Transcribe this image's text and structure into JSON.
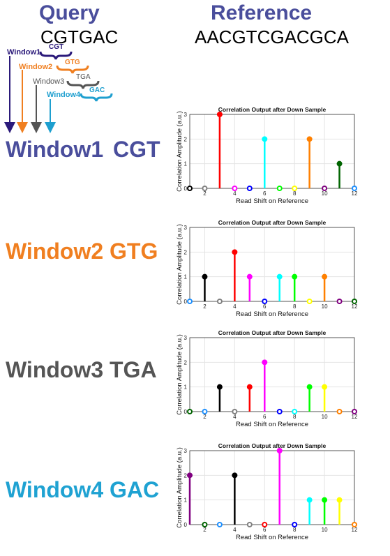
{
  "header": {
    "query_title": "Query",
    "query_seq": "CGTGAC",
    "reference_title": "Reference",
    "reference_seq": "AACGTCGACGCA"
  },
  "diagram": {
    "windows": [
      {
        "label": "Window1",
        "kmer": "CGT",
        "color": "#2b1a7a"
      },
      {
        "label": "Window2",
        "kmer": "GTG",
        "color": "#f07f20"
      },
      {
        "label": "Window3",
        "kmer": "TGA",
        "color": "#555555"
      },
      {
        "label": "Window4",
        "kmer": "GAC",
        "color": "#1e9fcf"
      }
    ]
  },
  "rows": [
    {
      "label": "Window1",
      "kmer": "CGT",
      "color": "#4a4e9c"
    },
    {
      "label": "Window2",
      "kmer": "GTG",
      "color": "#f07f20"
    },
    {
      "label": "Window3",
      "kmer": "TGA",
      "color": "#555555"
    },
    {
      "label": "Window4",
      "kmer": "GAC",
      "color": "#1fa2d2"
    }
  ],
  "chart_data": [
    {
      "type": "scatter",
      "title": "Correlation Output after Down Sample",
      "xlabel": "Read Shift on Reference",
      "ylabel": "Correlation Amplitude (a.u.)",
      "xlim": [
        1,
        12
      ],
      "ylim": [
        0,
        3
      ],
      "xticks": [
        2,
        4,
        6,
        8,
        10,
        12
      ],
      "yticks": [
        0,
        1,
        2,
        3
      ],
      "x": [
        1,
        2,
        3,
        4,
        5,
        6,
        7,
        8,
        9,
        10,
        11,
        12
      ],
      "values": [
        0,
        0,
        3,
        0,
        0,
        2,
        0,
        0,
        2,
        0,
        1,
        0
      ],
      "colors": [
        "#000000",
        "#808080",
        "#ff0000",
        "#ff00ff",
        "#0000ff",
        "#00ffff",
        "#00ff00",
        "#ffff00",
        "#ff8000",
        "#800080",
        "#006400",
        "#1e90ff"
      ]
    },
    {
      "type": "scatter",
      "title": "Correlation Output after Down Sample",
      "xlabel": "Read Shift on Reference",
      "ylabel": "Correlation Amplitude (a.u.)",
      "xlim": [
        1,
        12
      ],
      "ylim": [
        0,
        3
      ],
      "xticks": [
        2,
        4,
        6,
        8,
        10,
        12
      ],
      "yticks": [
        0,
        1,
        2,
        3
      ],
      "x": [
        1,
        2,
        3,
        4,
        5,
        6,
        7,
        8,
        9,
        10,
        11,
        12
      ],
      "values": [
        0,
        1,
        0,
        2,
        1,
        0,
        1,
        1,
        0,
        1,
        0,
        0
      ],
      "colors": [
        "#1e90ff",
        "#000000",
        "#808080",
        "#ff0000",
        "#ff00ff",
        "#0000ff",
        "#00ffff",
        "#00ff00",
        "#ffff00",
        "#ff8000",
        "#800080",
        "#006400"
      ]
    },
    {
      "type": "scatter",
      "title": "Correlation Output after Down Sample",
      "xlabel": "Read Shift on Reference",
      "ylabel": "Correlation Amplitude (a.u.)",
      "xlim": [
        1,
        12
      ],
      "ylim": [
        0,
        3
      ],
      "xticks": [
        2,
        4,
        6,
        8,
        10,
        12
      ],
      "yticks": [
        0,
        1,
        2,
        3
      ],
      "x": [
        1,
        2,
        3,
        4,
        5,
        6,
        7,
        8,
        9,
        10,
        11,
        12
      ],
      "values": [
        0,
        0,
        1,
        0,
        1,
        2,
        0,
        0,
        1,
        1,
        0,
        0
      ],
      "colors": [
        "#006400",
        "#1e90ff",
        "#000000",
        "#808080",
        "#ff0000",
        "#ff00ff",
        "#0000ff",
        "#00ffff",
        "#00ff00",
        "#ffff00",
        "#ff8000",
        "#800080"
      ]
    },
    {
      "type": "scatter",
      "title": "Correlation Output after Down Sample",
      "xlabel": "Read Shift on Reference",
      "ylabel": "Correlation Amplitude (a.u.)",
      "xlim": [
        1,
        12
      ],
      "ylim": [
        0,
        3
      ],
      "xticks": [
        2,
        4,
        6,
        8,
        10,
        12
      ],
      "yticks": [
        0,
        1,
        2,
        3
      ],
      "x": [
        1,
        2,
        3,
        4,
        5,
        6,
        7,
        8,
        9,
        10,
        11,
        12
      ],
      "values": [
        2,
        0,
        0,
        2,
        0,
        0,
        3,
        0,
        1,
        1,
        1,
        0
      ],
      "colors": [
        "#800080",
        "#006400",
        "#1e90ff",
        "#000000",
        "#808080",
        "#ff0000",
        "#ff00ff",
        "#0000ff",
        "#00ffff",
        "#00ff00",
        "#ffff00",
        "#ff8000"
      ]
    }
  ]
}
